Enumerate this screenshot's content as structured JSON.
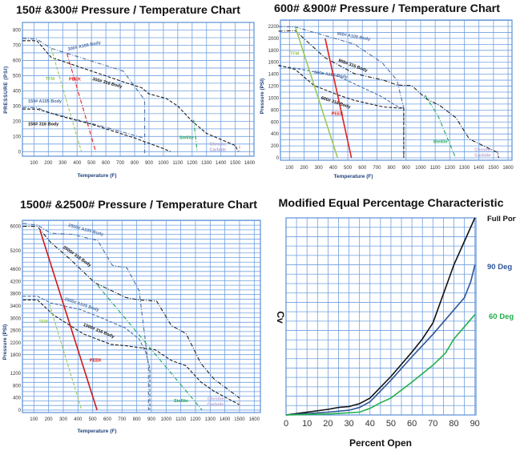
{
  "chart_data": [
    {
      "type": "line",
      "title": "150# &300# Pressure / Temperature Chart",
      "xlabel": "Temperature (F)",
      "ylabel": "PRESSURE (PSI)",
      "x_ticks": [
        100,
        200,
        300,
        400,
        500,
        600,
        700,
        800,
        900,
        1000,
        1100,
        1200,
        1300,
        1400,
        1500,
        1600
      ],
      "y_ticks": [
        0,
        100,
        200,
        300,
        400,
        500,
        600,
        700,
        800
      ],
      "xlim": [
        0,
        1600
      ],
      "ylim": [
        0,
        800
      ],
      "grid": true,
      "series": [
        {
          "name": "300# A105 Body",
          "color": "#4a6fa5",
          "style": "dashdot",
          "points": [
            [
              20,
              745
            ],
            [
              120,
              740
            ],
            [
              220,
              680
            ],
            [
              720,
              530
            ],
            [
              870,
              340
            ],
            [
              870,
              -10
            ]
          ]
        },
        {
          "name": "300# 316 Body",
          "color": "#222222",
          "style": "dashed",
          "points": [
            [
              20,
              730
            ],
            [
              120,
              730
            ],
            [
              220,
              620
            ],
            [
              500,
              530
            ],
            [
              750,
              450
            ],
            [
              850,
              420
            ],
            [
              900,
              380
            ],
            [
              1020,
              350
            ],
            [
              1100,
              300
            ],
            [
              1200,
              200
            ],
            [
              1300,
              120
            ],
            [
              1500,
              40
            ],
            [
              1520,
              0
            ]
          ]
        },
        {
          "name": "150# A105 Body",
          "color": "#4a6fa5",
          "style": "dashdot",
          "points": [
            [
              20,
              290
            ],
            [
              120,
              290
            ],
            [
              200,
              260
            ],
            [
              600,
              160
            ],
            [
              860,
              90
            ]
          ]
        },
        {
          "name": "150# 316 Body",
          "color": "#222222",
          "style": "dashed",
          "points": [
            [
              20,
              280
            ],
            [
              120,
              280
            ],
            [
              300,
              230
            ],
            [
              500,
              180
            ],
            [
              800,
              90
            ],
            [
              1000,
              20
            ],
            [
              1050,
              0
            ]
          ]
        },
        {
          "name": "TFM",
          "color": "#9bc95a",
          "style": "dashed",
          "points": [
            [
              220,
              680
            ],
            [
              430,
              0
            ]
          ]
        },
        {
          "name": "PEEK",
          "color": "#e02020",
          "style": "dashdot",
          "points": [
            [
              330,
              645
            ],
            [
              530,
              0
            ]
          ]
        },
        {
          "name": "Stellite",
          "color": "#1aa65a",
          "style": "dashdot",
          "points": [
            [
              1210,
              210
            ],
            [
              1235,
              0
            ]
          ]
        },
        {
          "name": "Chrome Carbide",
          "color": "#b8a0d0",
          "style": "dashed",
          "points": [
            [
              1530,
              40
            ],
            [
              1530,
              0
            ]
          ]
        }
      ]
    },
    {
      "type": "line",
      "title": "600# &900# Pressure / Temperature Chart",
      "xlabel": "Temperature (F)",
      "ylabel": "Pressure (PSI)",
      "x_ticks": [
        100,
        200,
        300,
        400,
        500,
        600,
        700,
        800,
        900,
        1000,
        1100,
        1200,
        1300,
        1400,
        1500,
        1600
      ],
      "y_ticks": [
        0,
        200,
        400,
        600,
        800,
        1000,
        1200,
        1400,
        1600,
        1800,
        2000,
        2200
      ],
      "xlim": [
        0,
        1600
      ],
      "ylim": [
        0,
        2200
      ],
      "grid": true,
      "series": [
        {
          "name": "900# A105 Body",
          "color": "#4a6fa5",
          "style": "dashdot",
          "points": [
            [
              25,
              2200
            ],
            [
              140,
              2190
            ],
            [
              544,
              1904
            ],
            [
              737,
              1590
            ],
            [
              838,
              1300
            ],
            [
              884,
              830
            ],
            [
              884,
              0
            ]
          ]
        },
        {
          "name": "900# 316 Body",
          "color": "#222222",
          "style": "dashdot",
          "points": [
            [
              25,
              2120
            ],
            [
              140,
              2128
            ],
            [
              342,
              1680
            ],
            [
              544,
              1411
            ],
            [
              746,
              1300
            ],
            [
              838,
              1219
            ],
            [
              939,
              1210
            ],
            [
              1040,
              986
            ],
            [
              1132,
              874
            ],
            [
              1242,
              672
            ],
            [
              1334,
              314
            ],
            [
              1527,
              90
            ],
            [
              1536,
              0
            ]
          ]
        },
        {
          "name": "600# A105 Body",
          "color": "#4a6fa5",
          "style": "dashed",
          "points": [
            [
              25,
              1540
            ],
            [
              140,
              1500
            ],
            [
              434,
              1366
            ],
            [
              728,
              1030
            ],
            [
              847,
              850
            ],
            [
              884,
              830
            ]
          ]
        },
        {
          "name": "600# 316 Body",
          "color": "#222222",
          "style": "dashed",
          "points": [
            [
              25,
              1550
            ],
            [
              140,
              1478
            ],
            [
              269,
              1210
            ],
            [
              434,
              1053
            ],
            [
              544,
              963
            ],
            [
              746,
              851
            ],
            [
              884,
              829
            ],
            [
              884,
              0
            ]
          ]
        },
        {
          "name": "TFM",
          "color": "#9bc95a",
          "style": "solid",
          "points": [
            [
              140,
              2190
            ],
            [
              430,
              0
            ]
          ]
        },
        {
          "name": "PEEK",
          "color": "#e02020",
          "style": "solid",
          "points": [
            [
              345,
              2000
            ],
            [
              525,
              0
            ]
          ]
        },
        {
          "name": "Stellite",
          "color": "#1aa65a",
          "style": "dashdot",
          "points": [
            [
              1030,
              1050
            ],
            [
              1120,
              700
            ],
            [
              1240,
              0
            ]
          ]
        },
        {
          "name": "Chrome Carbide",
          "color": "#b8a0d0",
          "style": "dashed",
          "points": [
            [
              1530,
              120
            ],
            [
              1530,
              0
            ]
          ]
        }
      ]
    },
    {
      "type": "line",
      "title": "1500# &2500# Pressure / Temperature Chart",
      "xlabel": "Temperature (F)",
      "ylabel": "Pressure (PSI)",
      "x_ticks": [
        100,
        200,
        300,
        400,
        500,
        600,
        700,
        800,
        900,
        1000,
        1100,
        1200,
        1300,
        1400,
        1500,
        1600
      ],
      "y_ticks": [
        0,
        400,
        800,
        1200,
        1800,
        2200,
        2600,
        3000,
        3400,
        3800,
        4200,
        4600,
        5200,
        6000
      ],
      "xlim": [
        0,
        1600
      ],
      "ylim": [
        0,
        6000
      ],
      "grid": true,
      "series": [
        {
          "name": "2500# A105 Body",
          "color": "#4a6fa5",
          "style": "dashdot",
          "points": [
            [
              25,
              6100
            ],
            [
              124,
              6044
            ],
            [
              215,
              5780
            ],
            [
              361,
              5740
            ],
            [
              534,
              5540
            ],
            [
              634,
              4730
            ],
            [
              734,
              4640
            ],
            [
              816,
              3900
            ],
            [
              880,
              1445
            ],
            [
              880,
              0
            ]
          ]
        },
        {
          "name": "2500# 316 Body",
          "color": "#222222",
          "style": "dashdot",
          "points": [
            [
              25,
              6000
            ],
            [
              124,
              6000
            ],
            [
              215,
              5475
            ],
            [
              342,
              4950
            ],
            [
              515,
              4160
            ],
            [
              725,
              3680
            ],
            [
              825,
              3590
            ],
            [
              935,
              3565
            ],
            [
              1036,
              2760
            ],
            [
              1136,
              2500
            ],
            [
              1236,
              1530
            ],
            [
              1327,
              1010
            ],
            [
              1500,
              394
            ]
          ]
        },
        {
          "name": "1500# A105 Body",
          "color": "#4a6fa5",
          "style": "dashed",
          "points": [
            [
              25,
              3720
            ],
            [
              124,
              3720
            ],
            [
              215,
              3500
            ],
            [
              416,
              3285
            ],
            [
              534,
              3066
            ],
            [
              725,
              2672
            ],
            [
              816,
              2321
            ],
            [
              862,
              1883
            ],
            [
              889,
              1357
            ],
            [
              889,
              0
            ]
          ]
        },
        {
          "name": "1500# 316 Body",
          "color": "#222222",
          "style": "dashed",
          "points": [
            [
              25,
              3600
            ],
            [
              124,
              3600
            ],
            [
              233,
              3110
            ],
            [
              433,
              2497
            ],
            [
              624,
              2146
            ],
            [
              725,
              2102
            ],
            [
              926,
              1971
            ],
            [
              1036,
              1620
            ],
            [
              1136,
              1445
            ],
            [
              1236,
              920
            ],
            [
              1327,
              613
            ],
            [
              1500,
              175
            ]
          ]
        },
        {
          "name": "TFM",
          "color": "#9bc95a",
          "style": "dashed",
          "points": [
            [
              206,
              3460
            ],
            [
              425,
              0
            ]
          ]
        },
        {
          "name": "PEEK",
          "color": "#d01818",
          "style": "solid",
          "points": [
            [
              142,
              5870
            ],
            [
              530,
              0
            ]
          ]
        },
        {
          "name": "Stellite",
          "color": "#1aa65a",
          "style": "dashdot",
          "points": [
            [
              534,
              4073
            ],
            [
              1245,
              0
            ]
          ]
        },
        {
          "name": "Chrome Carbide",
          "color": "#b8a0d0",
          "style": "dashed",
          "points": [
            [
              1500,
              350
            ],
            [
              1500,
              0
            ]
          ]
        }
      ]
    },
    {
      "type": "line",
      "title": "Modified Equal Percentage Characteristic",
      "xlabel": "Percent Open",
      "ylabel": "Cv",
      "x_ticks": [
        0,
        10,
        20,
        30,
        40,
        50,
        60,
        70,
        80,
        90
      ],
      "y_ticks": [],
      "xlim": [
        0,
        90
      ],
      "grid": true,
      "series": [
        {
          "name": "Full Port",
          "color": "#111111",
          "style": "solid",
          "points": [
            [
              0,
              0
            ],
            [
              10,
              0.3
            ],
            [
              20,
              0.6
            ],
            [
              25,
              0.8
            ],
            [
              30,
              0.9
            ],
            [
              35,
              1.2
            ],
            [
              40,
              1.8
            ],
            [
              50,
              4.1
            ],
            [
              60,
              6.7
            ],
            [
              65,
              8.1
            ],
            [
              70,
              9.8
            ],
            [
              80,
              16.0
            ],
            [
              90,
              21.0
            ]
          ]
        },
        {
          "name": "90 Deg",
          "color": "#2f5597",
          "style": "solid",
          "points": [
            [
              0,
              0
            ],
            [
              20,
              0.3
            ],
            [
              30,
              0.5
            ],
            [
              35,
              0.8
            ],
            [
              40,
              1.4
            ],
            [
              50,
              3.7
            ],
            [
              60,
              6.2
            ],
            [
              70,
              8.6
            ],
            [
              80,
              11.2
            ],
            [
              85,
              12.5
            ],
            [
              88,
              14.2
            ],
            [
              90,
              16.0
            ]
          ]
        },
        {
          "name": "60 Deg",
          "color": "#22b04b",
          "style": "solid",
          "points": [
            [
              0,
              0
            ],
            [
              20,
              0.1
            ],
            [
              35,
              0.3
            ],
            [
              40,
              0.7
            ],
            [
              45,
              1.3
            ],
            [
              50,
              1.8
            ],
            [
              60,
              3.5
            ],
            [
              70,
              5.3
            ],
            [
              76,
              6.6
            ],
            [
              80,
              8.1
            ],
            [
              90,
              10.7
            ]
          ]
        }
      ]
    }
  ]
}
